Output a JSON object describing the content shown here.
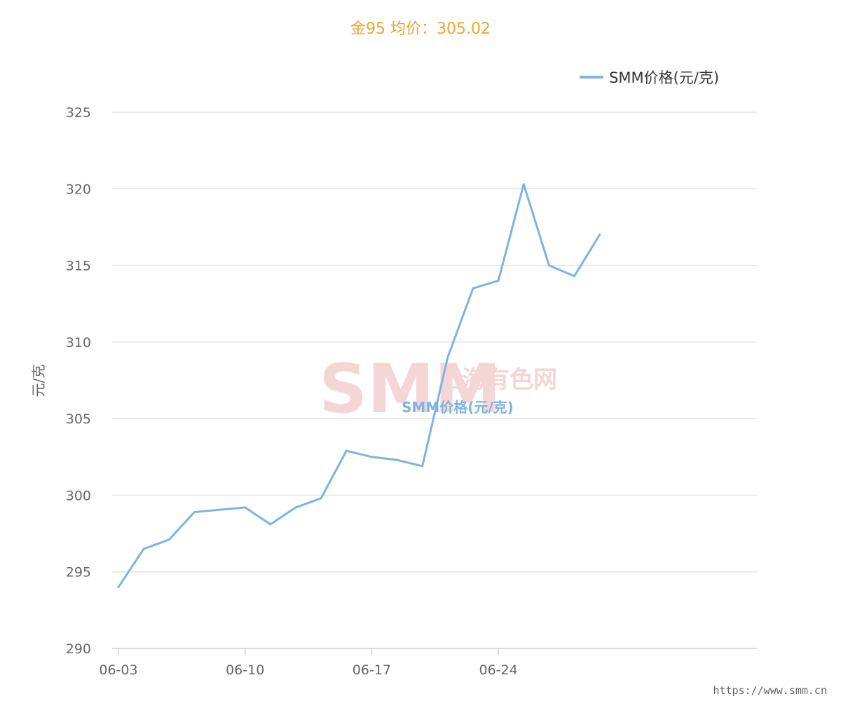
{
  "title": "金95 均价：305.02",
  "title_color": "#f0a431",
  "footer_url": "https://www.smm.cn",
  "colors": {
    "series": "#7eb3e2",
    "grid": "#e2e6ea",
    "watermark": "#f5d6d6"
  },
  "watermark": {
    "logo": "SMM",
    "brand": "上海有色网"
  },
  "chart_data": {
    "type": "line",
    "title": "金95 均价：305.02",
    "xlabel": "",
    "ylabel": "元/克",
    "ylim": [
      290,
      325
    ],
    "yticks": [
      290,
      295,
      300,
      305,
      310,
      315,
      320,
      325
    ],
    "xticks": [
      "06-03",
      "06-10",
      "06-17",
      "06-24"
    ],
    "x": [
      "06-03",
      "06-04",
      "06-05",
      "06-06",
      "06-10",
      "06-11",
      "06-12",
      "06-13",
      "06-14",
      "06-17",
      "06-18",
      "06-19",
      "06-20",
      "06-21",
      "06-24",
      "06-25",
      "06-26",
      "06-27",
      "06-28"
    ],
    "grid": true,
    "legend_position": "top-right",
    "series": [
      {
        "name": "SMM价格(元/克)",
        "values": [
          294.0,
          296.5,
          297.1,
          298.9,
          299.2,
          298.1,
          299.2,
          299.8,
          302.9,
          302.5,
          302.3,
          301.9,
          309.0,
          313.5,
          314.0,
          320.3,
          315.0,
          314.3,
          317.0
        ]
      }
    ]
  }
}
